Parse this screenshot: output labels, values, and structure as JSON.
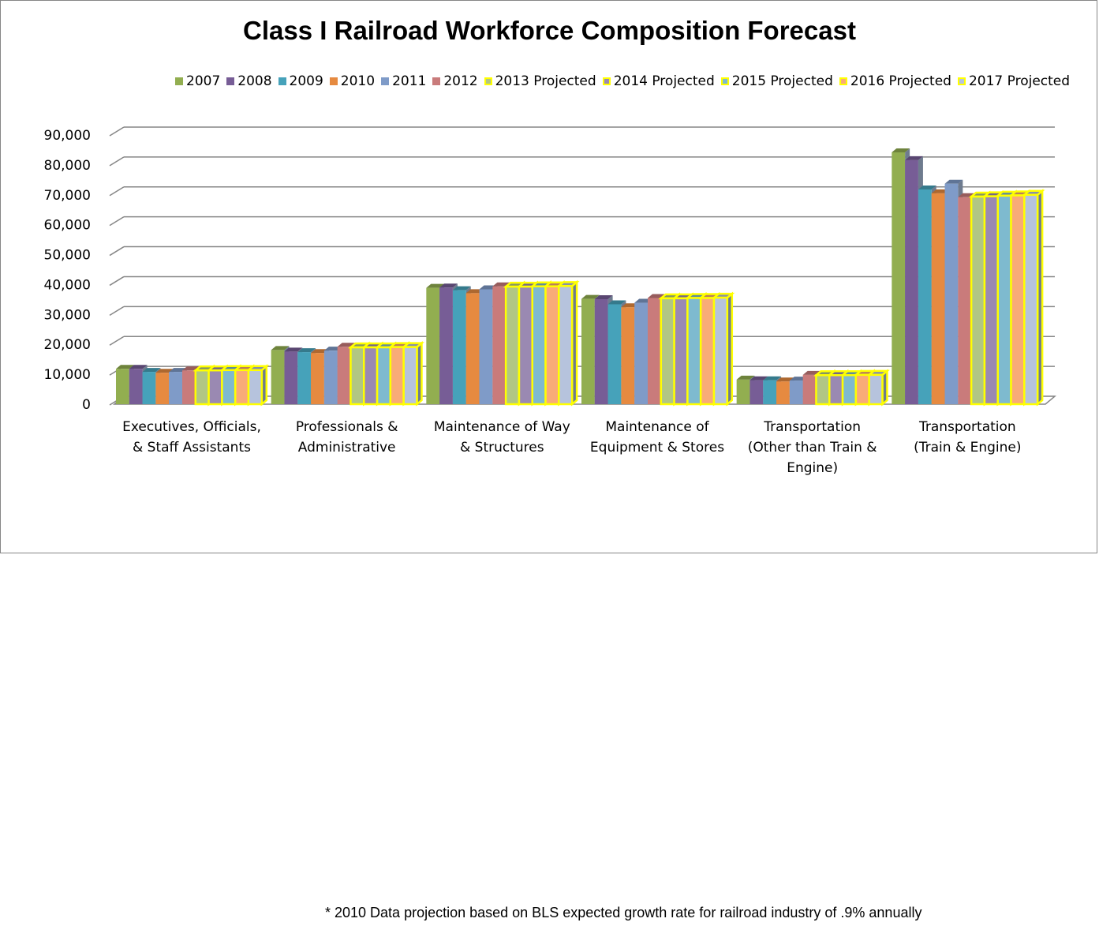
{
  "chart_data": {
    "type": "bar",
    "title": "Class I Railroad Workforce Composition Forecast",
    "xlabel": "",
    "ylabel": "",
    "ylim": [
      0,
      90000
    ],
    "yticks": [
      "0",
      "10,000",
      "20,000",
      "30,000",
      "40,000",
      "50,000",
      "60,000",
      "70,000",
      "80,000",
      "90,000"
    ],
    "grid": true,
    "legend_position": "top",
    "categories": [
      [
        "Executives, Officials,",
        "& Staff Assistants"
      ],
      [
        "Professionals &",
        "Administrative"
      ],
      [
        "Maintenance of Way",
        "& Structures"
      ],
      [
        "Maintenance of",
        "Equipment & Stores"
      ],
      [
        "Transportation",
        "(Other than Train &",
        "Engine)"
      ],
      [
        "Transportation",
        "(Train & Engine)"
      ]
    ],
    "series": [
      {
        "name": "2007",
        "color": "#92AE50",
        "projected": false,
        "values": [
          11800,
          18100,
          38900,
          35200,
          8200,
          84200
        ]
      },
      {
        "name": "2008",
        "color": "#775D96",
        "projected": false,
        "values": [
          11800,
          17600,
          39000,
          35100,
          8000,
          81600
        ]
      },
      {
        "name": "2009",
        "color": "#46A2BA",
        "projected": false,
        "values": [
          10800,
          17400,
          38100,
          33400,
          8000,
          71800
        ]
      },
      {
        "name": "2010",
        "color": "#E68A40",
        "projected": false,
        "values": [
          10500,
          17100,
          37100,
          32400,
          7600,
          70500
        ]
      },
      {
        "name": "2011",
        "color": "#7F9BC8",
        "projected": false,
        "values": [
          10800,
          17900,
          38400,
          33900,
          7900,
          73700
        ]
      },
      {
        "name": "2012",
        "color": "#C97B7B",
        "projected": false,
        "values": [
          11300,
          19200,
          39400,
          35500,
          9800,
          69200
        ]
      },
      {
        "name": "2013 Projected",
        "color": "#B1C684",
        "projected": true,
        "values": [
          11300,
          19000,
          39300,
          35400,
          9700,
          69400
        ]
      },
      {
        "name": "2014 Projected",
        "color": "#9A89B2",
        "projected": true,
        "values": [
          11300,
          19000,
          39300,
          35400,
          9700,
          69500
        ]
      },
      {
        "name": "2015 Projected",
        "color": "#7EBACF",
        "projected": true,
        "values": [
          11400,
          19000,
          39400,
          35500,
          9700,
          69700
        ]
      },
      {
        "name": "2016 Projected",
        "color": "#F8AB78",
        "projected": true,
        "values": [
          11400,
          19100,
          39400,
          35500,
          9800,
          69800
        ]
      },
      {
        "name": "2017 Projected",
        "color": "#B6C3DD",
        "projected": true,
        "values": [
          11400,
          19100,
          39500,
          35600,
          9800,
          70000
        ]
      }
    ],
    "projected_outline_color": "#FFFF00"
  },
  "footnote": "* 2010 Data projection based on BLS expected growth rate for railroad industry of .9% annually"
}
